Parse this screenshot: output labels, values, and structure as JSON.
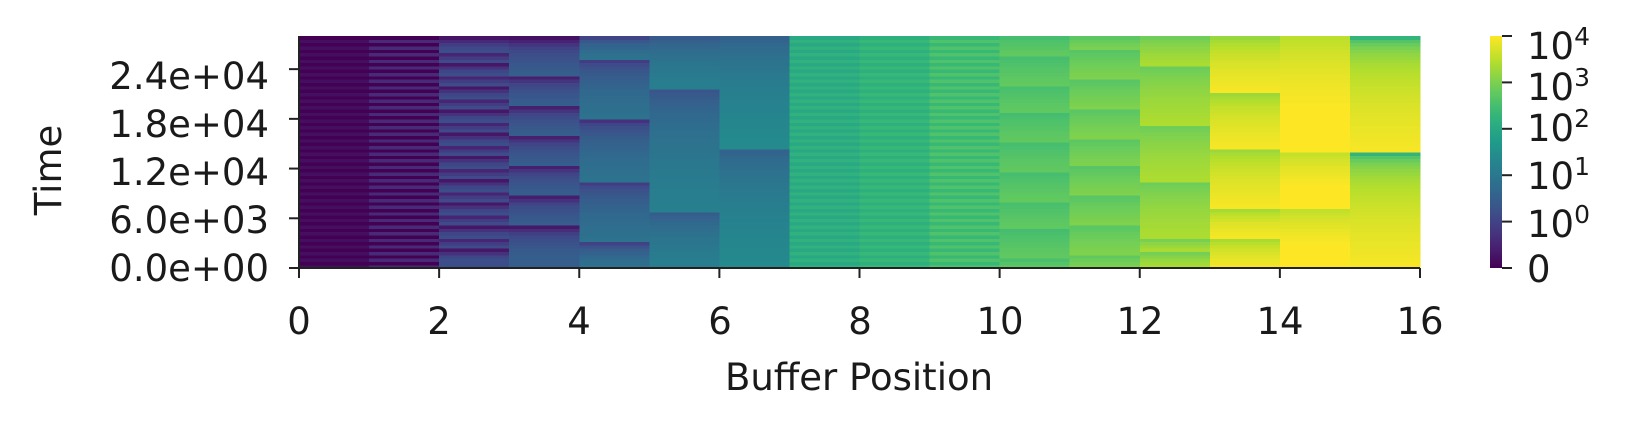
{
  "chart_data": {
    "type": "heatmap",
    "title": "",
    "xlabel": "Buffer Position",
    "ylabel": "Time",
    "xlim": [
      0,
      16
    ],
    "ylim": [
      0,
      28000
    ],
    "x_ticks": [
      "0",
      "2",
      "4",
      "6",
      "8",
      "10",
      "12",
      "14",
      "16"
    ],
    "y_ticks": [
      "0.0e+00",
      "6.0e+03",
      "1.2e+04",
      "1.8e+04",
      "2.4e+04"
    ],
    "colormap": "viridis",
    "color_scale": "symlog",
    "colorbar_ticks": [
      "0",
      "10^0",
      "10^1",
      "10^2",
      "10^3",
      "10^4"
    ],
    "grid": false,
    "columns": [
      {
        "position": 0,
        "pattern": "stripes",
        "low": 0,
        "high": 0.2,
        "bands": []
      },
      {
        "position": 1,
        "pattern": "stripes",
        "low": 0,
        "high": 0.6,
        "bands": []
      },
      {
        "position": 2,
        "pattern": "sawtooth",
        "low": 0.1,
        "high": 1.5,
        "bands": [
          [
            1000,
            2400
          ],
          [
            2400,
            3800
          ],
          [
            3800,
            5200
          ],
          [
            5200,
            6600
          ],
          [
            6600,
            8000
          ],
          [
            8000,
            9400
          ],
          [
            9400,
            10800
          ],
          [
            10800,
            12200
          ],
          [
            12200,
            13600
          ],
          [
            13600,
            15000
          ],
          [
            15000,
            16400
          ],
          [
            16400,
            17800
          ],
          [
            17800,
            19200
          ],
          [
            19200,
            20600
          ],
          [
            20600,
            22000
          ],
          [
            22000,
            23400
          ],
          [
            23400,
            24800
          ],
          [
            24800,
            26200
          ],
          [
            26200,
            28000
          ]
        ]
      },
      {
        "position": 3,
        "pattern": "sawtooth",
        "low": 0.1,
        "high": 3,
        "bands": [
          [
            1500,
            5300
          ],
          [
            5300,
            9000
          ],
          [
            9000,
            12600
          ],
          [
            12600,
            16200
          ],
          [
            16200,
            19800
          ],
          [
            19800,
            23400
          ],
          [
            23400,
            28000
          ]
        ]
      },
      {
        "position": 4,
        "pattern": "sawtooth",
        "low": 0.5,
        "high": 8,
        "bands": [
          [
            0,
            3200
          ],
          [
            3200,
            10600
          ],
          [
            10600,
            18000
          ],
          [
            18000,
            25400
          ],
          [
            25400,
            28000
          ]
        ]
      },
      {
        "position": 5,
        "pattern": "sawtooth",
        "low": 2,
        "high": 15,
        "bands": [
          [
            0,
            7000
          ],
          [
            7000,
            21500
          ],
          [
            21500,
            28000
          ]
        ]
      },
      {
        "position": 6,
        "pattern": "sawtooth",
        "low": 3,
        "high": 25,
        "bands": [
          [
            0,
            14500
          ],
          [
            14500,
            28000
          ]
        ]
      },
      {
        "position": 7,
        "pattern": "stripes",
        "low": 100,
        "high": 160,
        "bands": []
      },
      {
        "position": 8,
        "pattern": "stripes",
        "low": 140,
        "high": 230,
        "bands": []
      },
      {
        "position": 9,
        "pattern": "stripes",
        "low": 230,
        "high": 400,
        "bands": []
      },
      {
        "position": 10,
        "pattern": "sawtooth",
        "low": 300,
        "high": 600,
        "bands": [
          [
            0,
            1200
          ],
          [
            1200,
            4700
          ],
          [
            4700,
            8200
          ],
          [
            8200,
            11700
          ],
          [
            11700,
            15200
          ],
          [
            15200,
            18700
          ],
          [
            18700,
            22200
          ],
          [
            22200,
            25700
          ],
          [
            25700,
            28000
          ]
        ]
      },
      {
        "position": 11,
        "pattern": "sawtooth",
        "low": 450,
        "high": 1100,
        "bands": [
          [
            0,
            1800
          ],
          [
            1800,
            5300
          ],
          [
            5300,
            8800
          ],
          [
            8800,
            12300
          ],
          [
            12300,
            15800
          ],
          [
            15800,
            19300
          ],
          [
            19300,
            22800
          ],
          [
            22800,
            26300
          ],
          [
            26300,
            28000
          ]
        ]
      },
      {
        "position": 12,
        "pattern": "sawtooth",
        "low": 700,
        "high": 2500,
        "bands": [
          [
            0,
            2000
          ],
          [
            2000,
            3600
          ],
          [
            3600,
            10500
          ],
          [
            10500,
            17400
          ],
          [
            17400,
            24300
          ],
          [
            24300,
            28000
          ]
        ]
      },
      {
        "position": 13,
        "pattern": "sawtooth",
        "low": 1500,
        "high": 9000,
        "bands": [
          [
            0,
            3800
          ],
          [
            3800,
            7300
          ],
          [
            7300,
            14500
          ],
          [
            14500,
            21300
          ],
          [
            21300,
            28000
          ]
        ]
      },
      {
        "position": 14,
        "pattern": "sawtooth",
        "low": 3000,
        "high": 14000,
        "bands": [
          [
            0,
            7300
          ],
          [
            7300,
            14200
          ],
          [
            14200,
            28000
          ]
        ]
      },
      {
        "position": 15,
        "pattern": "sawtooth",
        "low": 60,
        "high": 9000,
        "bands": [
          [
            0,
            14000
          ],
          [
            14000,
            28000
          ]
        ]
      }
    ]
  }
}
